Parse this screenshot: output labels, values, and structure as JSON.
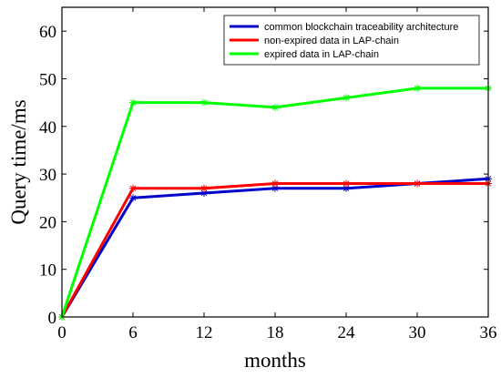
{
  "chart_data": {
    "type": "line",
    "xlabel": "months",
    "ylabel": "Query time/ms",
    "x": [
      0,
      6,
      12,
      18,
      24,
      30,
      36
    ],
    "xticks": [
      "0",
      "6",
      "12",
      "18",
      "24",
      "30",
      "36"
    ],
    "yticks": [
      "0",
      "10",
      "20",
      "30",
      "40",
      "50",
      "60"
    ],
    "xlim": [
      0,
      36
    ],
    "ylim": [
      0,
      65
    ],
    "grid": false,
    "legend_position": "top-right",
    "series": [
      {
        "name": "common blockchain traceability architecture",
        "color": "#0000cc",
        "values": [
          0,
          25,
          26,
          27,
          27,
          28,
          29
        ]
      },
      {
        "name": "non-expired data in LAP-chain",
        "color": "#ff0000",
        "values": [
          0,
          27,
          27,
          28,
          28,
          28,
          28
        ]
      },
      {
        "name": "expired data in LAP-chain",
        "color": "#00ff00",
        "values": [
          0,
          45,
          45,
          44,
          46,
          48,
          48
        ]
      }
    ]
  }
}
